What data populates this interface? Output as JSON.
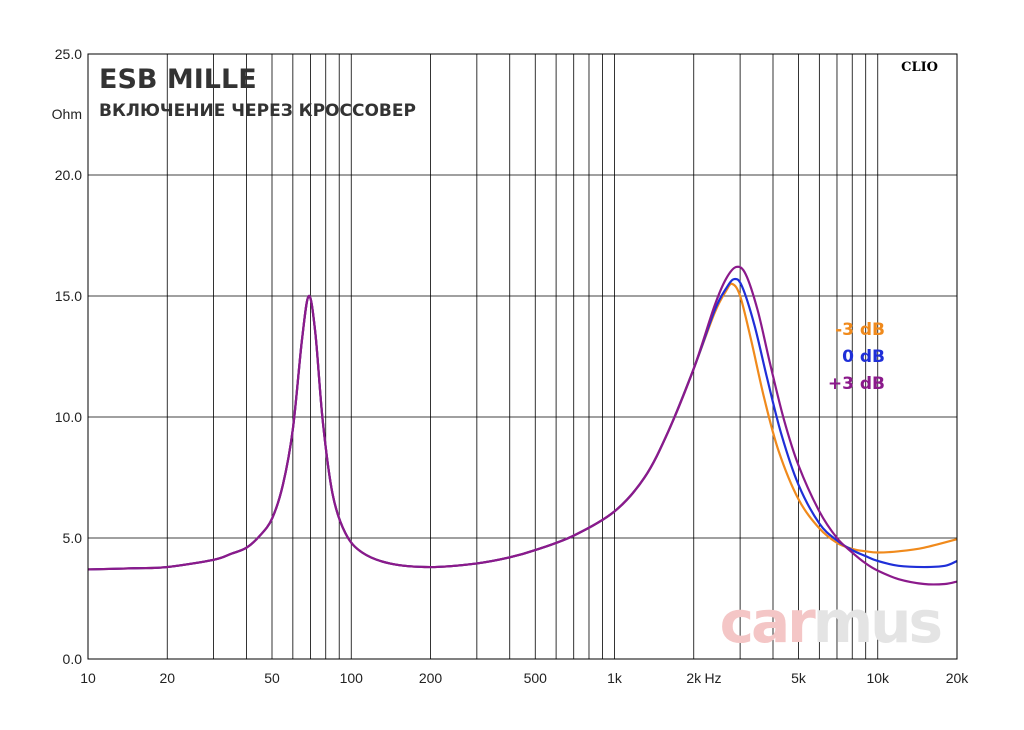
{
  "chart_data": {
    "type": "line",
    "title": "ESB MILLE",
    "subtitle": "ВКЛЮЧЕНИЕ ЧЕРЕЗ КРОССОВЕР",
    "xlabel": "Hz",
    "ylabel": "Ohm",
    "x_scale": "log",
    "xlim": [
      10,
      20000
    ],
    "ylim": [
      0,
      25
    ],
    "grid": true,
    "legend_position": "right",
    "x_ticks": [
      {
        "value": 10,
        "label": "10"
      },
      {
        "value": 20,
        "label": "20"
      },
      {
        "value": 50,
        "label": "50"
      },
      {
        "value": 100,
        "label": "100"
      },
      {
        "value": 200,
        "label": "200"
      },
      {
        "value": 500,
        "label": "500"
      },
      {
        "value": 1000,
        "label": "1k"
      },
      {
        "value": 2000,
        "label": "2k"
      },
      {
        "value": 5000,
        "label": "5k"
      },
      {
        "value": 10000,
        "label": "10k"
      },
      {
        "value": 20000,
        "label": "20k"
      }
    ],
    "y_ticks": [
      {
        "value": 0,
        "label": "0.0"
      },
      {
        "value": 5,
        "label": "5.0"
      },
      {
        "value": 10,
        "label": "10.0"
      },
      {
        "value": 15,
        "label": "15.0"
      },
      {
        "value": 20,
        "label": "20.0"
      },
      {
        "value": 25,
        "label": "25.0"
      }
    ],
    "series": [
      {
        "name": "-3 dB",
        "color": "#f08a1c",
        "points": [
          [
            10,
            3.7
          ],
          [
            15,
            3.75
          ],
          [
            20,
            3.8
          ],
          [
            30,
            4.1
          ],
          [
            35,
            4.35
          ],
          [
            40,
            4.6
          ],
          [
            45,
            5.1
          ],
          [
            50,
            5.8
          ],
          [
            55,
            7.2
          ],
          [
            60,
            9.5
          ],
          [
            65,
            13.2
          ],
          [
            69,
            15.0
          ],
          [
            73,
            13.5
          ],
          [
            78,
            9.8
          ],
          [
            85,
            6.8
          ],
          [
            95,
            5.2
          ],
          [
            110,
            4.4
          ],
          [
            140,
            3.95
          ],
          [
            200,
            3.8
          ],
          [
            300,
            3.95
          ],
          [
            400,
            4.2
          ],
          [
            500,
            4.5
          ],
          [
            700,
            5.1
          ],
          [
            1000,
            6.1
          ],
          [
            1300,
            7.5
          ],
          [
            1600,
            9.4
          ],
          [
            2000,
            12.0
          ],
          [
            2400,
            14.3
          ],
          [
            2650,
            15.2
          ],
          [
            2800,
            15.5
          ],
          [
            3000,
            15.0
          ],
          [
            3300,
            13.2
          ],
          [
            3700,
            10.8
          ],
          [
            4200,
            8.6
          ],
          [
            5000,
            6.6
          ],
          [
            6000,
            5.4
          ],
          [
            7000,
            4.8
          ],
          [
            8000,
            4.55
          ],
          [
            9000,
            4.45
          ],
          [
            10000,
            4.4
          ],
          [
            12000,
            4.45
          ],
          [
            15000,
            4.6
          ],
          [
            20000,
            4.95
          ]
        ]
      },
      {
        "name": "0 dB",
        "color": "#1f2fd8",
        "points": [
          [
            10,
            3.7
          ],
          [
            15,
            3.75
          ],
          [
            20,
            3.8
          ],
          [
            30,
            4.1
          ],
          [
            35,
            4.35
          ],
          [
            40,
            4.6
          ],
          [
            45,
            5.1
          ],
          [
            50,
            5.8
          ],
          [
            55,
            7.2
          ],
          [
            60,
            9.5
          ],
          [
            65,
            13.2
          ],
          [
            69,
            15.0
          ],
          [
            73,
            13.5
          ],
          [
            78,
            9.8
          ],
          [
            85,
            6.8
          ],
          [
            95,
            5.2
          ],
          [
            110,
            4.4
          ],
          [
            140,
            3.95
          ],
          [
            200,
            3.8
          ],
          [
            300,
            3.95
          ],
          [
            400,
            4.2
          ],
          [
            500,
            4.5
          ],
          [
            700,
            5.1
          ],
          [
            1000,
            6.1
          ],
          [
            1300,
            7.5
          ],
          [
            1600,
            9.4
          ],
          [
            2000,
            12.0
          ],
          [
            2400,
            14.4
          ],
          [
            2650,
            15.3
          ],
          [
            2850,
            15.7
          ],
          [
            3050,
            15.4
          ],
          [
            3400,
            13.8
          ],
          [
            3800,
            11.6
          ],
          [
            4300,
            9.3
          ],
          [
            5000,
            7.2
          ],
          [
            6000,
            5.6
          ],
          [
            7000,
            4.9
          ],
          [
            8000,
            4.5
          ],
          [
            9000,
            4.25
          ],
          [
            10000,
            4.05
          ],
          [
            12000,
            3.85
          ],
          [
            15000,
            3.8
          ],
          [
            18000,
            3.85
          ],
          [
            20000,
            4.05
          ]
        ]
      },
      {
        "name": "+3 dB",
        "color": "#8b1a8b",
        "points": [
          [
            10,
            3.7
          ],
          [
            15,
            3.75
          ],
          [
            20,
            3.8
          ],
          [
            30,
            4.1
          ],
          [
            35,
            4.35
          ],
          [
            40,
            4.6
          ],
          [
            45,
            5.1
          ],
          [
            50,
            5.8
          ],
          [
            55,
            7.2
          ],
          [
            60,
            9.5
          ],
          [
            65,
            13.2
          ],
          [
            69,
            15.0
          ],
          [
            73,
            13.5
          ],
          [
            78,
            9.8
          ],
          [
            85,
            6.8
          ],
          [
            95,
            5.2
          ],
          [
            110,
            4.4
          ],
          [
            140,
            3.95
          ],
          [
            200,
            3.8
          ],
          [
            300,
            3.95
          ],
          [
            400,
            4.2
          ],
          [
            500,
            4.5
          ],
          [
            700,
            5.1
          ],
          [
            1000,
            6.1
          ],
          [
            1300,
            7.5
          ],
          [
            1600,
            9.4
          ],
          [
            2000,
            12.0
          ],
          [
            2400,
            14.6
          ],
          [
            2650,
            15.7
          ],
          [
            2900,
            16.2
          ],
          [
            3150,
            15.9
          ],
          [
            3500,
            14.4
          ],
          [
            3900,
            12.2
          ],
          [
            4400,
            9.9
          ],
          [
            5000,
            8.0
          ],
          [
            6000,
            6.1
          ],
          [
            7000,
            5.0
          ],
          [
            8000,
            4.4
          ],
          [
            9000,
            3.95
          ],
          [
            10000,
            3.65
          ],
          [
            12000,
            3.3
          ],
          [
            15000,
            3.1
          ],
          [
            18000,
            3.1
          ],
          [
            20000,
            3.2
          ]
        ]
      }
    ]
  },
  "brand_label": "CLIO",
  "watermark": {
    "part1": "car",
    "part2": "mus"
  }
}
